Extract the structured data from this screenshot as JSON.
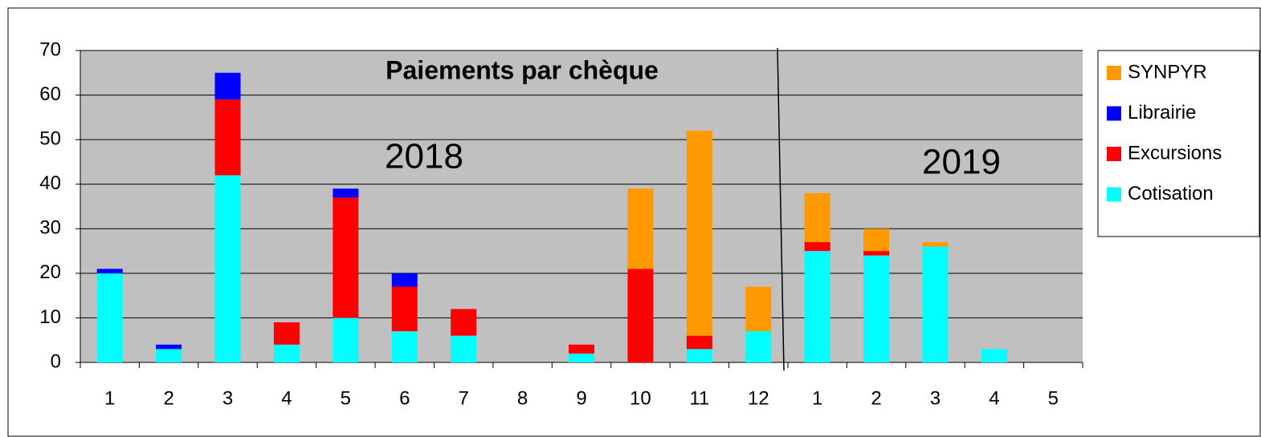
{
  "chart_data": {
    "type": "stacked_bar",
    "title": "Paiements par chèque",
    "annotations": [
      "2018",
      "2019"
    ],
    "categories": [
      "1",
      "2",
      "3",
      "4",
      "5",
      "6",
      "7",
      "8",
      "9",
      "10",
      "11",
      "12",
      "1",
      "2",
      "3",
      "4",
      "5"
    ],
    "series": [
      {
        "name": "Cotisation",
        "color": "#00ffff",
        "values": [
          20,
          3,
          42,
          4,
          10,
          7,
          6,
          0,
          2,
          0,
          3,
          7,
          25,
          24,
          26,
          3,
          0
        ]
      },
      {
        "name": "Excursions",
        "color": "#ff0000",
        "values": [
          0,
          0,
          17,
          5,
          27,
          10,
          6,
          0,
          2,
          21,
          3,
          0,
          2,
          1,
          0,
          0,
          0
        ]
      },
      {
        "name": "Librairie",
        "color": "#0000ff",
        "values": [
          1,
          1,
          6,
          0,
          2,
          3,
          0,
          0,
          0,
          0,
          0,
          0,
          0,
          0,
          0,
          0,
          0
        ]
      },
      {
        "name": "SYNPYR",
        "color": "#ff9900",
        "values": [
          0,
          0,
          0,
          0,
          0,
          0,
          0,
          0,
          0,
          18,
          46,
          10,
          11,
          5,
          1,
          0,
          0
        ]
      }
    ],
    "ylim": [
      0,
      70
    ],
    "yticks": [
      0,
      10,
      20,
      30,
      40,
      50,
      60,
      70
    ],
    "grid": true,
    "legend": "right"
  }
}
